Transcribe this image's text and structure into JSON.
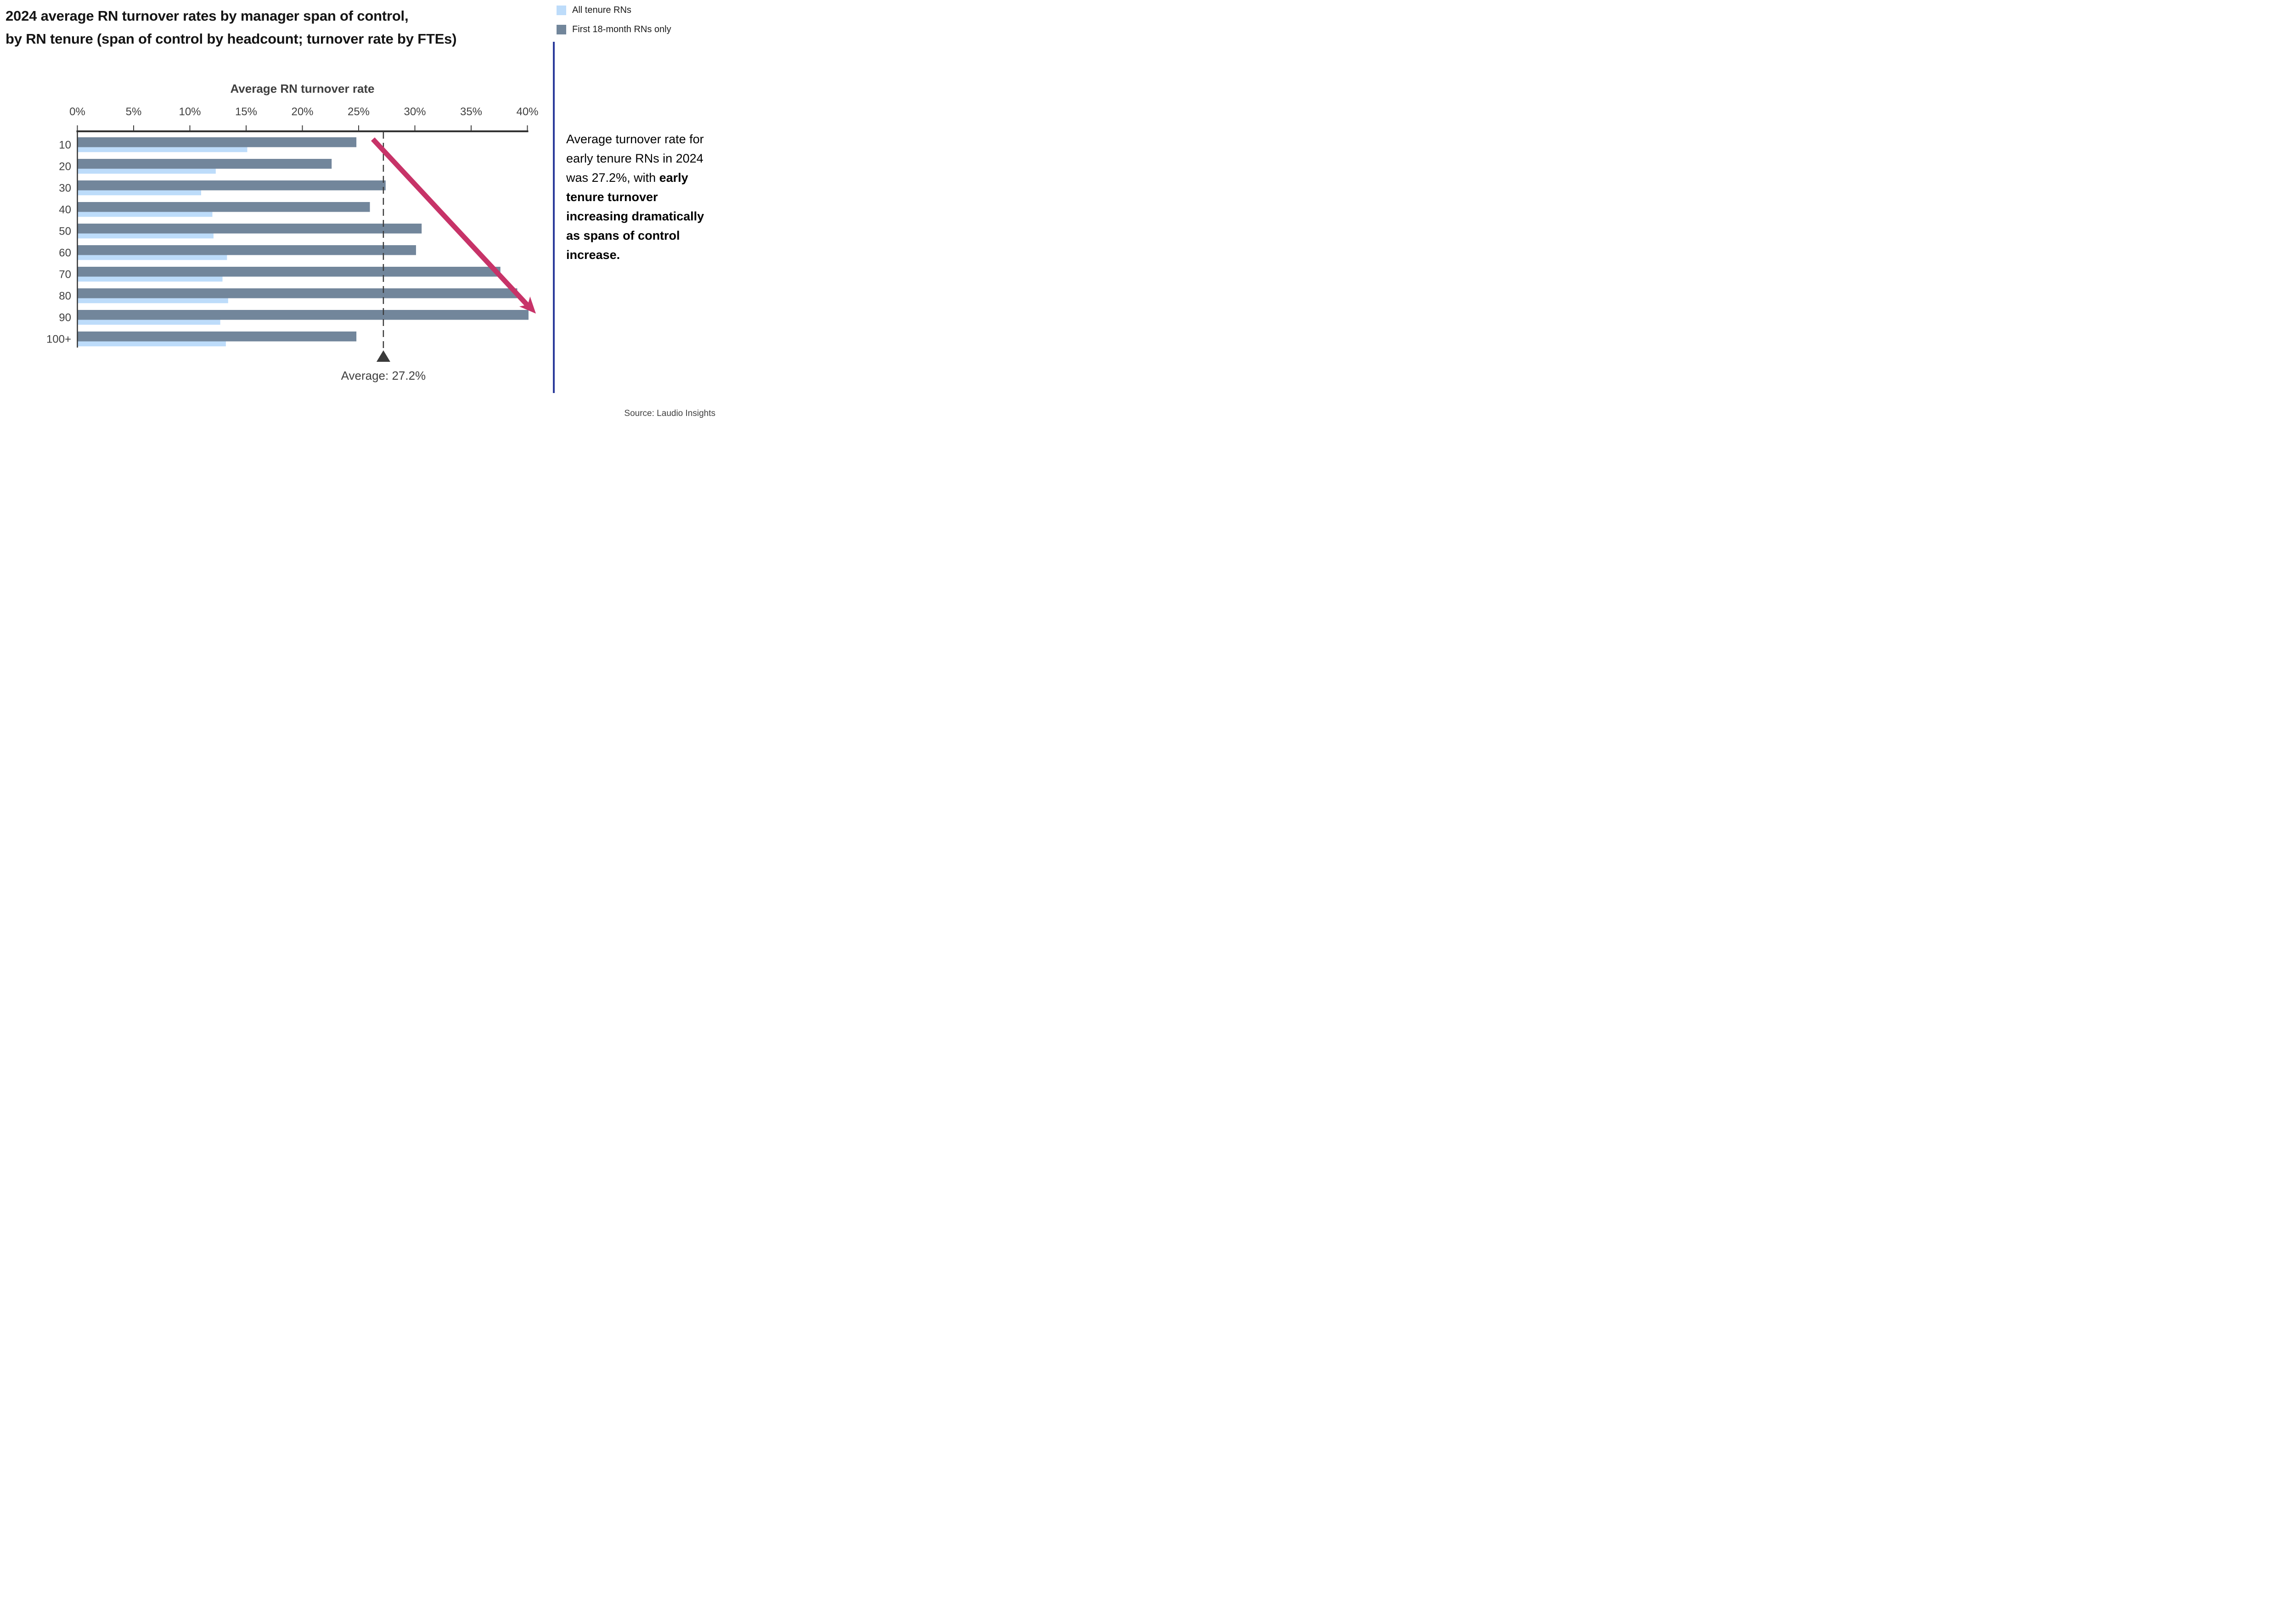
{
  "title": {
    "line1": "2024 average RN turnover rates by manager span of control,",
    "line2": "by RN tenure (span of control by headcount; turnover rate by FTEs)"
  },
  "legend": {
    "items": [
      {
        "label": "All tenure RNs",
        "color": "#BDDCFA"
      },
      {
        "label": "First 18-month RNs only",
        "color": "#72869B"
      }
    ]
  },
  "chart_data": {
    "type": "bar",
    "orientation": "horizontal",
    "axis_title": "Average RN turnover rate",
    "categories": [
      "10",
      "20",
      "30",
      "40",
      "50",
      "60",
      "70",
      "80",
      "90",
      "100+"
    ],
    "series": [
      {
        "name": "First 18-month RNs only",
        "color": "#72869B",
        "values": [
          24.8,
          22.6,
          27.4,
          26.0,
          30.6,
          30.1,
          37.6,
          39.1,
          40.1,
          24.8
        ]
      },
      {
        "name": "All tenure RNs",
        "color": "#BDDCFA",
        "values": [
          15.1,
          12.3,
          11.0,
          12.0,
          12.1,
          13.3,
          12.9,
          13.4,
          12.7,
          13.2
        ]
      }
    ],
    "x_axis": {
      "min": 0,
      "max": 40,
      "tick_step": 5,
      "tick_labels": [
        "0%",
        "5%",
        "10%",
        "15%",
        "20%",
        "25%",
        "30%",
        "35%",
        "40%"
      ]
    },
    "average_marker": {
      "value": 27.2,
      "label": "Average: 27.2%"
    },
    "trend_arrow": {
      "color": "#C73368",
      "direction": "down-right"
    },
    "legend_position": "top-right",
    "grid": false
  },
  "annotation": {
    "text_normal": "Average turnover rate for early tenure RNs in 2024 was 27.2%, with ",
    "text_bold": "early tenure turnover increasing dramatically as spans of control increase."
  },
  "source": "Source: Laudio Insights",
  "colors": {
    "divider": "#2B3B9B",
    "axis": "#333333",
    "muted_text": "#3F3F3F",
    "marker": "#3A3A3A"
  }
}
